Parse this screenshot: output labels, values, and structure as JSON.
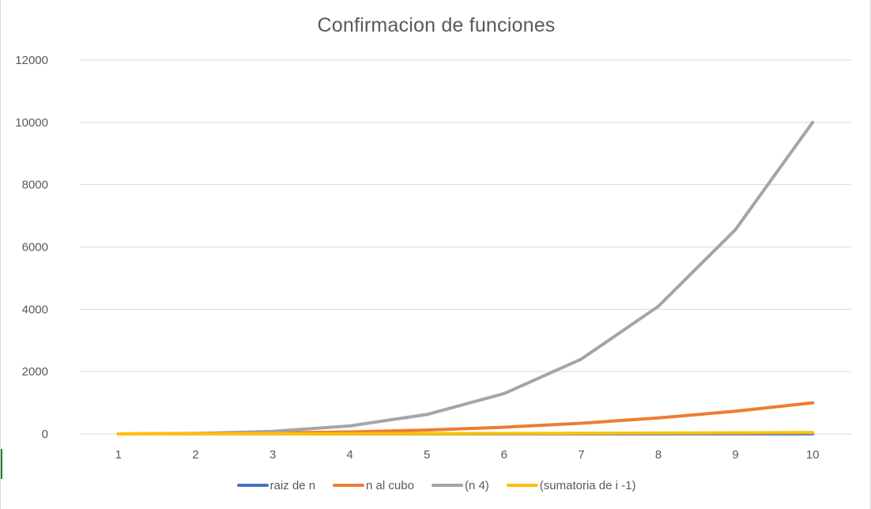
{
  "chart_data": {
    "type": "line",
    "title": "Confirmacion de funciones",
    "xlabel": "",
    "ylabel": "",
    "categories": [
      "1",
      "2",
      "3",
      "4",
      "5",
      "6",
      "7",
      "8",
      "9",
      "10"
    ],
    "ylim": [
      0,
      12000
    ],
    "yticks": [
      "0",
      "2000",
      "4000",
      "6000",
      "8000",
      "10000",
      "12000"
    ],
    "grid": true,
    "legend_position": "bottom",
    "series": [
      {
        "name": "raiz de n",
        "color": "#4472c4",
        "values": [
          1,
          1.41,
          1.73,
          2,
          2.24,
          2.45,
          2.65,
          2.83,
          3,
          3.16
        ]
      },
      {
        "name": "n al cubo",
        "color": "#ed7d31",
        "values": [
          1,
          8,
          27,
          64,
          125,
          216,
          343,
          512,
          729,
          1000
        ]
      },
      {
        "name": "(n 4)",
        "color": "#a5a5a5",
        "values": [
          1,
          16,
          81,
          256,
          625,
          1296,
          2401,
          4096,
          6561,
          10000
        ]
      },
      {
        "name": "(sumatoria de i -1)",
        "color": "#ffc000",
        "values": [
          0,
          1,
          3,
          6,
          10,
          15,
          21,
          28,
          36,
          45
        ]
      }
    ]
  }
}
